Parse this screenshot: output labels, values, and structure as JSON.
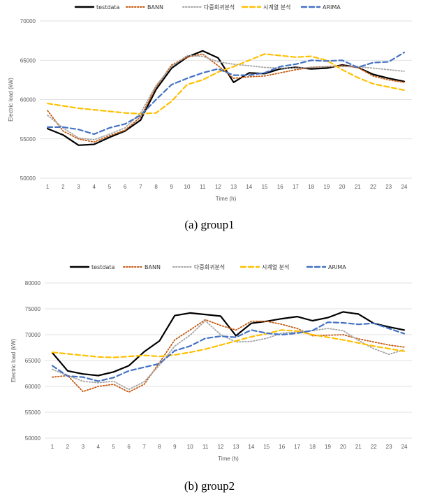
{
  "chart_data": [
    {
      "type": "line",
      "caption": "(a)  group1",
      "xlabel": "Time (h)",
      "ylabel": "Electric load (kW)",
      "x": [
        1,
        2,
        3,
        4,
        5,
        6,
        7,
        8,
        9,
        10,
        11,
        12,
        13,
        14,
        15,
        16,
        17,
        18,
        19,
        20,
        21,
        22,
        23,
        24
      ],
      "ylim": [
        50000,
        70000
      ],
      "yticks": [
        50000,
        55000,
        60000,
        65000,
        70000
      ],
      "grid": "horizontal",
      "legend": "top",
      "series": [
        {
          "name": "testdata",
          "color": "#000000",
          "dash": "solid",
          "values": [
            56300,
            55500,
            54200,
            54300,
            55200,
            56000,
            57400,
            61300,
            64000,
            65400,
            66200,
            65300,
            62200,
            63400,
            63300,
            63900,
            64100,
            63900,
            64000,
            64400,
            64100,
            63200,
            62700,
            62300
          ]
        },
        {
          "name": "BANN",
          "color": "#C55A11",
          "dash": "dot",
          "values": [
            58600,
            56000,
            55000,
            54600,
            55400,
            56100,
            57800,
            61600,
            64400,
            65400,
            65800,
            64300,
            62700,
            62900,
            63000,
            63400,
            63800,
            64100,
            64200,
            64300,
            64100,
            63000,
            62500,
            62200
          ]
        },
        {
          "name": "다중회귀분석",
          "color": "#A5A5A5",
          "dash": "dot",
          "values": [
            58000,
            56400,
            55100,
            54900,
            55600,
            56400,
            58300,
            61800,
            64200,
            65600,
            65500,
            64800,
            64500,
            64300,
            64100,
            64000,
            64000,
            64100,
            64200,
            64200,
            64200,
            64000,
            63800,
            63600
          ]
        },
        {
          "name": "시계열 분석",
          "color": "#FFC000",
          "dash": "dash",
          "values": [
            59500,
            59200,
            58900,
            58700,
            58500,
            58300,
            58200,
            58300,
            59800,
            61900,
            62500,
            63500,
            64200,
            65000,
            65800,
            65600,
            65400,
            65500,
            65000,
            63800,
            62800,
            62000,
            61600,
            61200
          ]
        },
        {
          "name": "ARIMA",
          "color": "#4472C4",
          "dash": "dash",
          "values": [
            56500,
            56500,
            56200,
            55600,
            56400,
            56900,
            58000,
            60000,
            61900,
            62700,
            63400,
            63900,
            63100,
            63100,
            63400,
            64200,
            64500,
            65000,
            64900,
            65000,
            64100,
            64700,
            64800,
            66000
          ]
        }
      ]
    },
    {
      "type": "line",
      "caption": "(b)  group2",
      "xlabel": "Time (h)",
      "ylabel": "Electric load (kW)",
      "x": [
        1,
        2,
        3,
        4,
        5,
        6,
        7,
        8,
        9,
        10,
        11,
        12,
        13,
        14,
        15,
        16,
        17,
        18,
        19,
        20,
        21,
        22,
        23,
        24
      ],
      "ylim": [
        50000,
        80000
      ],
      "yticks": [
        50000,
        55000,
        60000,
        65000,
        70000,
        75000,
        80000
      ],
      "grid": "horizontal",
      "legend": "top",
      "series": [
        {
          "name": "testdata",
          "color": "#000000",
          "dash": "solid",
          "values": [
            66500,
            63000,
            62400,
            62100,
            62800,
            64000,
            66700,
            68800,
            73700,
            74200,
            73900,
            73600,
            69800,
            72200,
            72600,
            73100,
            73500,
            72700,
            73300,
            74400,
            74000,
            72200,
            71500,
            70900
          ]
        },
        {
          "name": "BANN",
          "color": "#C55A11",
          "dash": "dot",
          "values": [
            61800,
            62100,
            59000,
            60000,
            60400,
            58900,
            60400,
            64600,
            69000,
            70900,
            72900,
            71800,
            70900,
            72600,
            72600,
            72000,
            71200,
            69800,
            69900,
            70000,
            69200,
            68600,
            68000,
            67600
          ]
        },
        {
          "name": "다중회귀분석",
          "color": "#A5A5A5",
          "dash": "dot",
          "values": [
            63300,
            62100,
            61000,
            60700,
            61000,
            59400,
            60900,
            64100,
            67800,
            69900,
            72700,
            70000,
            68600,
            68700,
            69300,
            70300,
            70500,
            70800,
            71200,
            70800,
            68900,
            67300,
            66200,
            67100
          ]
        },
        {
          "name": "시계열 분석",
          "color": "#FFC000",
          "dash": "dash",
          "values": [
            66600,
            66300,
            66000,
            65700,
            65600,
            65800,
            66000,
            65800,
            66100,
            66600,
            67200,
            68000,
            68800,
            69600,
            70200,
            70900,
            70700,
            70000,
            69500,
            69000,
            68400,
            67800,
            67300,
            66800
          ]
        },
        {
          "name": "ARIMA",
          "color": "#4472C4",
          "dash": "dash",
          "values": [
            64000,
            62000,
            61800,
            61000,
            61700,
            63000,
            63700,
            64400,
            66900,
            67800,
            69300,
            69700,
            69500,
            70900,
            70300,
            70000,
            70300,
            70800,
            72400,
            72300,
            72000,
            72200,
            71200,
            70200
          ]
        }
      ]
    }
  ]
}
